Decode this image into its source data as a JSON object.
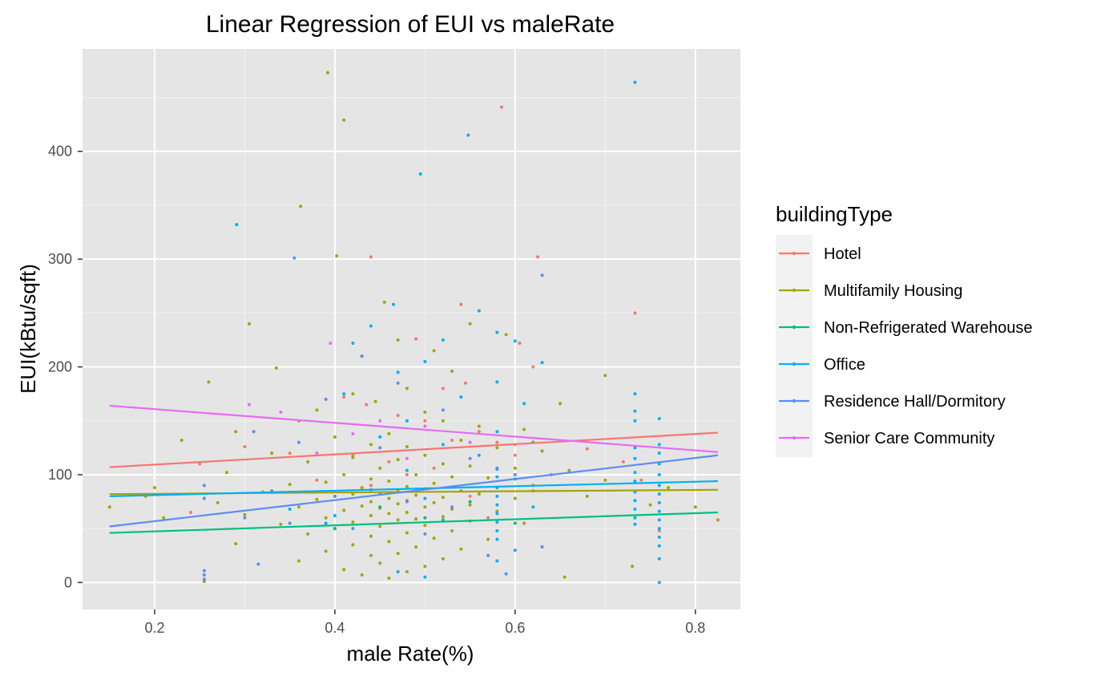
{
  "chart_data": {
    "type": "scatter",
    "title": "Linear Regression of EUI vs maleRate",
    "xlabel": "male Rate(%)",
    "ylabel": "EUI(kBtu/sqft)",
    "xlim": [
      0.12,
      0.85
    ],
    "ylim": [
      -25,
      495
    ],
    "x_ticks": [
      0.2,
      0.4,
      0.6,
      0.8
    ],
    "x_tick_labels": [
      "0.2",
      "0.4",
      "0.6",
      "0.8"
    ],
    "y_ticks": [
      0,
      100,
      200,
      300,
      400
    ],
    "y_tick_labels": [
      "0",
      "100",
      "200",
      "300",
      "400"
    ],
    "grid": true,
    "background": "#e5e5e5",
    "legend": {
      "title": "buildingType",
      "placement": "right"
    },
    "series": [
      {
        "name": "Hotel",
        "color": "#f8766d",
        "fit": {
          "x": [
            0.15,
            0.825
          ],
          "y": [
            107,
            139
          ]
        },
        "points": [
          [
            0.585,
            441
          ],
          [
            0.44,
            302
          ],
          [
            0.625,
            302
          ],
          [
            0.733,
            250
          ],
          [
            0.54,
            258
          ],
          [
            0.49,
            226
          ],
          [
            0.605,
            222
          ],
          [
            0.62,
            200
          ],
          [
            0.52,
            180
          ],
          [
            0.545,
            185
          ],
          [
            0.41,
            172
          ],
          [
            0.435,
            165
          ],
          [
            0.47,
            155
          ],
          [
            0.5,
            150
          ],
          [
            0.56,
            140
          ],
          [
            0.58,
            130
          ],
          [
            0.3,
            126
          ],
          [
            0.35,
            120
          ],
          [
            0.25,
            110
          ],
          [
            0.42,
            118
          ],
          [
            0.46,
            112
          ],
          [
            0.51,
            106
          ],
          [
            0.53,
            132
          ],
          [
            0.6,
            118
          ],
          [
            0.64,
            100
          ],
          [
            0.68,
            124
          ],
          [
            0.72,
            112
          ],
          [
            0.38,
            95
          ],
          [
            0.44,
            90
          ],
          [
            0.48,
            100
          ],
          [
            0.55,
            80
          ],
          [
            0.62,
            85
          ],
          [
            0.74,
            95
          ],
          [
            0.76,
            48
          ],
          [
            0.24,
            65
          ],
          [
            0.57,
            60
          ]
        ]
      },
      {
        "name": "Multifamily Housing",
        "color": "#a3a500",
        "fit": {
          "x": [
            0.15,
            0.825
          ],
          "y": [
            82,
            86
          ]
        },
        "points": [
          [
            0.392,
            473
          ],
          [
            0.41,
            429
          ],
          [
            0.362,
            349
          ],
          [
            0.402,
            303
          ],
          [
            0.455,
            260
          ],
          [
            0.305,
            240
          ],
          [
            0.55,
            240
          ],
          [
            0.59,
            230
          ],
          [
            0.47,
            225
          ],
          [
            0.51,
            215
          ],
          [
            0.43,
            210
          ],
          [
            0.335,
            199
          ],
          [
            0.53,
            196
          ],
          [
            0.7,
            192
          ],
          [
            0.26,
            186
          ],
          [
            0.48,
            180
          ],
          [
            0.42,
            175
          ],
          [
            0.445,
            168
          ],
          [
            0.65,
            166
          ],
          [
            0.38,
            160
          ],
          [
            0.5,
            158
          ],
          [
            0.52,
            150
          ],
          [
            0.36,
            150
          ],
          [
            0.56,
            145
          ],
          [
            0.61,
            142
          ],
          [
            0.29,
            140
          ],
          [
            0.46,
            138
          ],
          [
            0.4,
            135
          ],
          [
            0.54,
            132
          ],
          [
            0.23,
            132
          ],
          [
            0.44,
            128
          ],
          [
            0.48,
            126
          ],
          [
            0.58,
            125
          ],
          [
            0.63,
            122
          ],
          [
            0.33,
            120
          ],
          [
            0.5,
            118
          ],
          [
            0.42,
            116
          ],
          [
            0.47,
            114
          ],
          [
            0.37,
            112
          ],
          [
            0.52,
            110
          ],
          [
            0.55,
            108
          ],
          [
            0.45,
            106
          ],
          [
            0.6,
            106
          ],
          [
            0.66,
            104
          ],
          [
            0.28,
            102
          ],
          [
            0.41,
            100
          ],
          [
            0.49,
            100
          ],
          [
            0.53,
            98
          ],
          [
            0.57,
            97
          ],
          [
            0.44,
            96
          ],
          [
            0.46,
            94
          ],
          [
            0.39,
            93
          ],
          [
            0.51,
            92
          ],
          [
            0.35,
            91
          ],
          [
            0.62,
            90
          ],
          [
            0.48,
            89
          ],
          [
            0.43,
            88
          ],
          [
            0.5,
            87
          ],
          [
            0.47,
            86
          ],
          [
            0.54,
            85
          ],
          [
            0.32,
            84
          ],
          [
            0.45,
            83
          ],
          [
            0.42,
            82
          ],
          [
            0.56,
            82
          ],
          [
            0.49,
            81
          ],
          [
            0.4,
            80
          ],
          [
            0.52,
            79
          ],
          [
            0.46,
            78
          ],
          [
            0.6,
            78
          ],
          [
            0.38,
            77
          ],
          [
            0.48,
            76
          ],
          [
            0.44,
            75
          ],
          [
            0.51,
            74
          ],
          [
            0.27,
            74
          ],
          [
            0.47,
            73
          ],
          [
            0.55,
            72
          ],
          [
            0.43,
            71
          ],
          [
            0.5,
            70
          ],
          [
            0.36,
            70
          ],
          [
            0.45,
            69
          ],
          [
            0.53,
            68
          ],
          [
            0.41,
            67
          ],
          [
            0.58,
            66
          ],
          [
            0.48,
            65
          ],
          [
            0.46,
            64
          ],
          [
            0.3,
            63
          ],
          [
            0.44,
            62
          ],
          [
            0.52,
            61
          ],
          [
            0.39,
            60
          ],
          [
            0.49,
            59
          ],
          [
            0.47,
            58
          ],
          [
            0.55,
            57
          ],
          [
            0.42,
            56
          ],
          [
            0.61,
            55
          ],
          [
            0.34,
            54
          ],
          [
            0.5,
            53
          ],
          [
            0.45,
            52
          ],
          [
            0.4,
            50
          ],
          [
            0.53,
            48
          ],
          [
            0.48,
            46
          ],
          [
            0.37,
            45
          ],
          [
            0.44,
            43
          ],
          [
            0.51,
            41
          ],
          [
            0.57,
            40
          ],
          [
            0.46,
            38
          ],
          [
            0.29,
            36
          ],
          [
            0.42,
            35
          ],
          [
            0.49,
            33
          ],
          [
            0.54,
            31
          ],
          [
            0.39,
            29
          ],
          [
            0.47,
            27
          ],
          [
            0.44,
            25
          ],
          [
            0.52,
            22
          ],
          [
            0.36,
            20
          ],
          [
            0.45,
            18
          ],
          [
            0.5,
            15
          ],
          [
            0.41,
            12
          ],
          [
            0.48,
            10
          ],
          [
            0.43,
            7
          ],
          [
            0.46,
            4
          ],
          [
            0.655,
            5
          ],
          [
            0.255,
            1
          ],
          [
            0.73,
            15
          ],
          [
            0.825,
            58
          ],
          [
            0.8,
            70
          ],
          [
            0.15,
            70
          ],
          [
            0.19,
            80
          ],
          [
            0.21,
            60
          ],
          [
            0.68,
            80
          ],
          [
            0.7,
            95
          ],
          [
            0.75,
            72
          ],
          [
            0.77,
            88
          ],
          [
            0.2,
            88
          ]
        ]
      },
      {
        "name": "Non-Refrigerated Warehouse",
        "color": "#00bf7d",
        "fit": {
          "x": [
            0.15,
            0.825
          ],
          "y": [
            46,
            65
          ]
        },
        "points": [
          [
            0.45,
            70
          ],
          [
            0.5,
            60
          ],
          [
            0.55,
            75
          ],
          [
            0.6,
            55
          ],
          [
            0.4,
            50
          ]
        ]
      },
      {
        "name": "Office",
        "color": "#00b0f6",
        "fit": {
          "x": [
            0.15,
            0.825
          ],
          "y": [
            80,
            94
          ]
        },
        "points": [
          [
            0.733,
            464
          ],
          [
            0.548,
            415
          ],
          [
            0.495,
            379
          ],
          [
            0.291,
            332
          ],
          [
            0.56,
            252
          ],
          [
            0.465,
            258
          ],
          [
            0.58,
            232
          ],
          [
            0.6,
            224
          ],
          [
            0.63,
            204
          ],
          [
            0.44,
            238
          ],
          [
            0.52,
            225
          ],
          [
            0.42,
            222
          ],
          [
            0.5,
            205
          ],
          [
            0.47,
            195
          ],
          [
            0.58,
            186
          ],
          [
            0.41,
            175
          ],
          [
            0.733,
            175
          ],
          [
            0.54,
            172
          ],
          [
            0.61,
            166
          ],
          [
            0.76,
            152
          ],
          [
            0.48,
            150
          ],
          [
            0.733,
            159
          ],
          [
            0.733,
            150
          ],
          [
            0.76,
            128
          ],
          [
            0.58,
            140
          ],
          [
            0.45,
            135
          ],
          [
            0.62,
            130
          ],
          [
            0.52,
            128
          ],
          [
            0.733,
            125
          ],
          [
            0.76,
            120
          ],
          [
            0.56,
            118
          ],
          [
            0.733,
            115
          ],
          [
            0.76,
            110
          ],
          [
            0.58,
            106
          ],
          [
            0.48,
            104
          ],
          [
            0.733,
            102
          ],
          [
            0.76,
            100
          ],
          [
            0.58,
            98
          ],
          [
            0.6,
            96
          ],
          [
            0.733,
            94
          ],
          [
            0.76,
            90
          ],
          [
            0.58,
            88
          ],
          [
            0.44,
            86
          ],
          [
            0.733,
            84
          ],
          [
            0.76,
            82
          ],
          [
            0.58,
            80
          ],
          [
            0.5,
            78
          ],
          [
            0.733,
            76
          ],
          [
            0.76,
            74
          ],
          [
            0.58,
            72
          ],
          [
            0.62,
            70
          ],
          [
            0.733,
            68
          ],
          [
            0.76,
            66
          ],
          [
            0.58,
            64
          ],
          [
            0.733,
            60
          ],
          [
            0.76,
            58
          ],
          [
            0.58,
            56
          ],
          [
            0.733,
            54
          ],
          [
            0.76,
            50
          ],
          [
            0.58,
            48
          ],
          [
            0.76,
            42
          ],
          [
            0.58,
            40
          ],
          [
            0.76,
            34
          ],
          [
            0.6,
            30
          ],
          [
            0.76,
            22
          ],
          [
            0.58,
            20
          ],
          [
            0.76,
            0
          ],
          [
            0.39,
            55
          ],
          [
            0.35,
            68
          ],
          [
            0.4,
            62
          ],
          [
            0.52,
            58
          ],
          [
            0.47,
            10
          ],
          [
            0.5,
            5
          ]
        ]
      },
      {
        "name": "Residence Hall/Dormitory",
        "color": "#5b8cf6",
        "fit": {
          "x": [
            0.15,
            0.825
          ],
          "y": [
            52,
            118
          ]
        },
        "points": [
          [
            0.355,
            301
          ],
          [
            0.63,
            285
          ],
          [
            0.43,
            210
          ],
          [
            0.47,
            185
          ],
          [
            0.39,
            170
          ],
          [
            0.52,
            160
          ],
          [
            0.31,
            140
          ],
          [
            0.36,
            130
          ],
          [
            0.45,
            125
          ],
          [
            0.55,
            115
          ],
          [
            0.58,
            105
          ],
          [
            0.6,
            100
          ],
          [
            0.255,
            90
          ],
          [
            0.255,
            78
          ],
          [
            0.33,
            85
          ],
          [
            0.4,
            80
          ],
          [
            0.48,
            75
          ],
          [
            0.53,
            70
          ],
          [
            0.3,
            60
          ],
          [
            0.35,
            55
          ],
          [
            0.42,
            50
          ],
          [
            0.5,
            45
          ],
          [
            0.63,
            33
          ],
          [
            0.255,
            11
          ],
          [
            0.255,
            7
          ],
          [
            0.255,
            3
          ],
          [
            0.315,
            17
          ],
          [
            0.57,
            25
          ],
          [
            0.59,
            8
          ]
        ]
      },
      {
        "name": "Senior Care Community",
        "color": "#e76bf3",
        "fit": {
          "x": [
            0.15,
            0.825
          ],
          "y": [
            164,
            121
          ]
        },
        "points": [
          [
            0.395,
            222
          ],
          [
            0.305,
            165
          ],
          [
            0.34,
            158
          ],
          [
            0.45,
            150
          ],
          [
            0.5,
            145
          ],
          [
            0.42,
            138
          ],
          [
            0.55,
            130
          ],
          [
            0.6,
            128
          ],
          [
            0.38,
            120
          ],
          [
            0.48,
            115
          ]
        ]
      }
    ]
  }
}
